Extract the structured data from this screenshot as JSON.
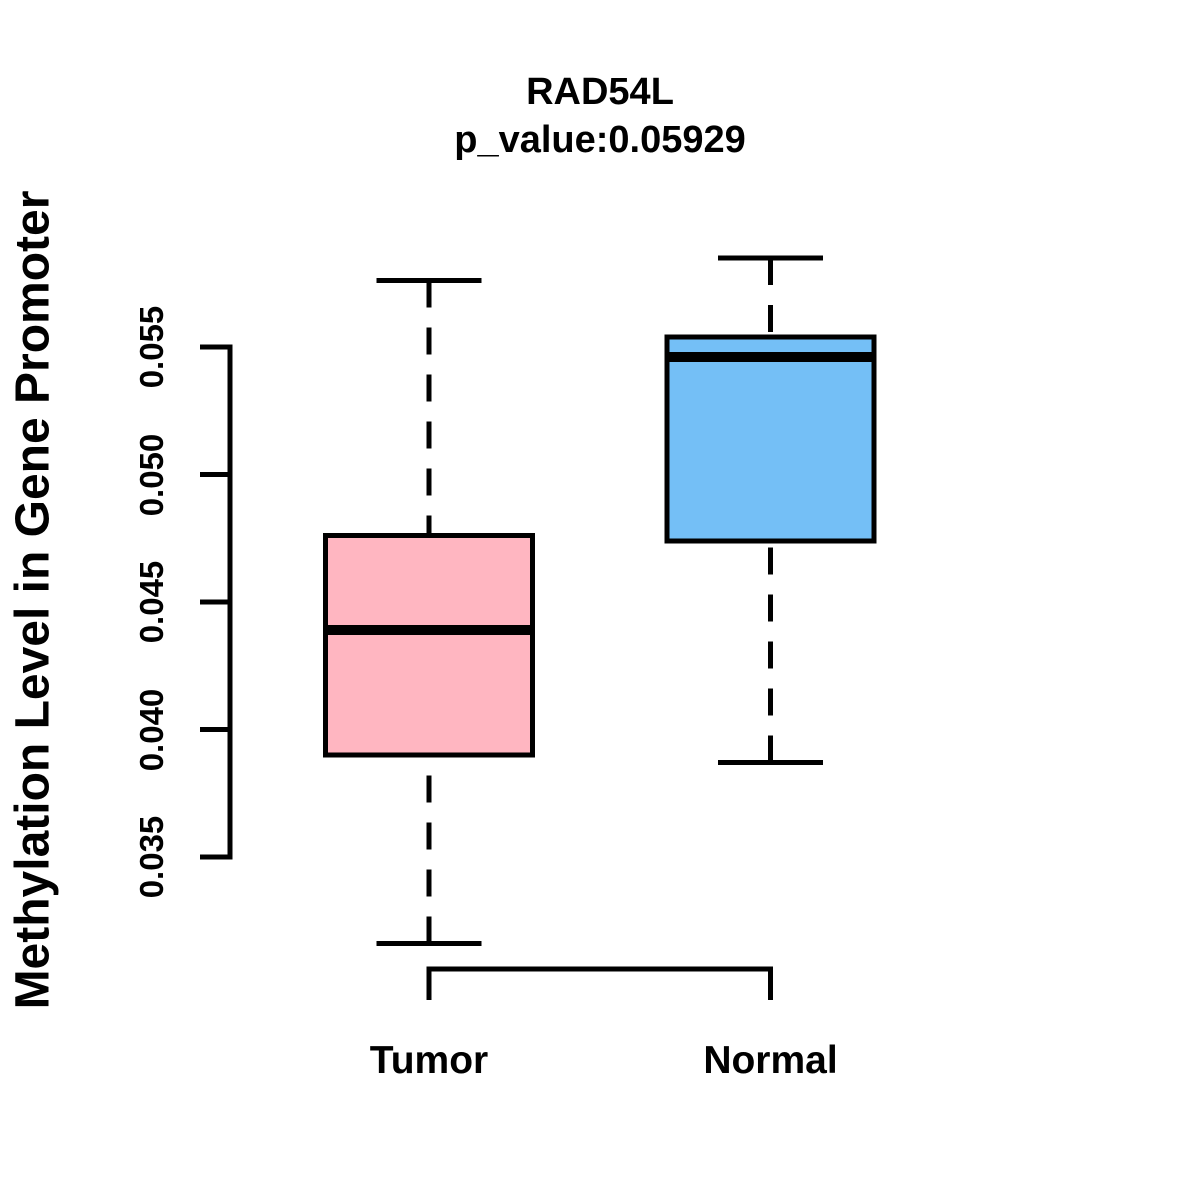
{
  "chart_data": {
    "type": "boxplot",
    "title": "RAD54L",
    "subtitle": "p_value:0.05929",
    "ylabel": "Methylation Level in Gene Promoter",
    "ylim": [
      0.035,
      0.055
    ],
    "yticks": [
      0.035,
      0.04,
      0.045,
      0.05,
      0.055
    ],
    "ytick_labels": [
      "0.035",
      "0.040",
      "0.045",
      "0.050",
      "0.055"
    ],
    "grid": false,
    "legend": "none",
    "background": "#FFFFFF",
    "line_color": "#000000",
    "groups": [
      {
        "label": "Tumor",
        "color": "#FFB6C1",
        "whisker_low": 0.0316,
        "q1": 0.039,
        "median": 0.0439,
        "q3": 0.0476,
        "whisker_high": 0.0576
      },
      {
        "label": "Normal",
        "color": "#74BFF6",
        "whisker_low": 0.0387,
        "q1": 0.0474,
        "median": 0.0546,
        "q3": 0.0554,
        "whisker_high": 0.0585
      }
    ]
  }
}
